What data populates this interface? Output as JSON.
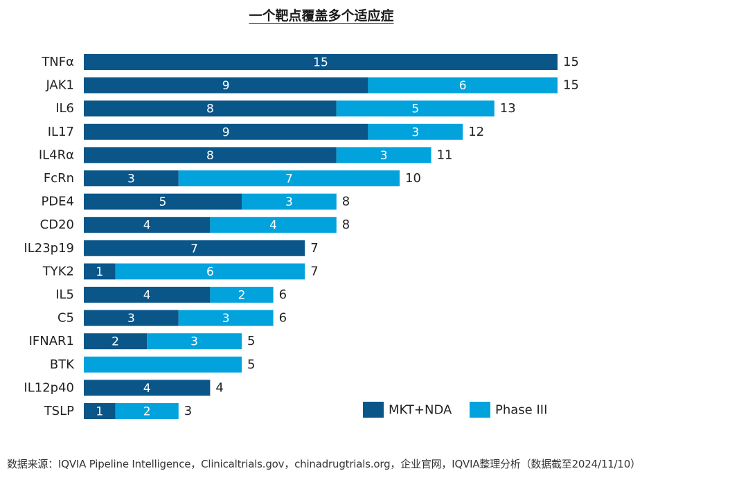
{
  "chart_data": {
    "type": "bar",
    "orientation": "horizontal",
    "stacked": true,
    "title": "一个靶点覆盖多个适应症",
    "xlabel": "",
    "ylabel": "",
    "xlim": [
      0,
      15
    ],
    "grid": false,
    "legend_position": "bottom-right",
    "categories": [
      "TNFα",
      "JAK1",
      "IL6",
      "IL17",
      "IL4Rα",
      "FcRn",
      "PDE4",
      "CD20",
      "IL23p19",
      "TYK2",
      "IL5",
      "C5",
      "IFNAR1",
      "BTK",
      "IL12p40",
      "TSLP"
    ],
    "series": [
      {
        "name": "MKT+NDA",
        "color": "#0a5689",
        "values": [
          15,
          9,
          8,
          9,
          8,
          3,
          5,
          4,
          7,
          1,
          4,
          3,
          2,
          0,
          4,
          1
        ]
      },
      {
        "name": "Phase III",
        "color": "#02a3dd",
        "values": [
          0,
          6,
          5,
          3,
          3,
          7,
          3,
          4,
          0,
          6,
          2,
          3,
          3,
          5,
          0,
          2
        ]
      }
    ],
    "totals": [
      15,
      15,
      13,
      12,
      11,
      10,
      8,
      8,
      7,
      7,
      6,
      6,
      5,
      5,
      4,
      3
    ]
  },
  "source_note": "数据来源：IQVIA Pipeline Intelligence，Clinicaltrials.gov，chinadrugtrials.org，企业官网，IQVIA整理分析（数据截至2024/11/10）"
}
